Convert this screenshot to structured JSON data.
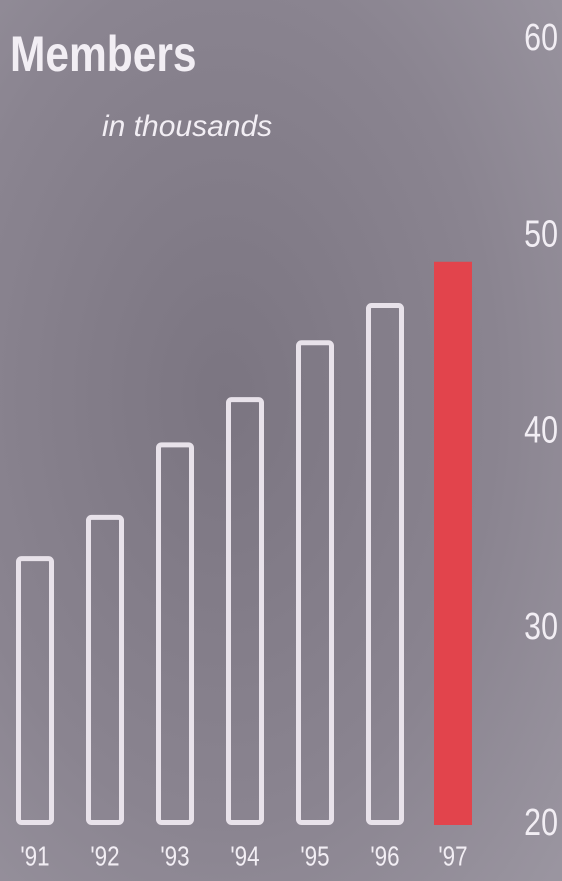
{
  "chart_data": {
    "type": "bar",
    "title": "Members",
    "subtitle": "in thousands",
    "categories": [
      "'91",
      "'92",
      "'93",
      "'94",
      "'95",
      "'96",
      "'97"
    ],
    "values": [
      33.7,
      35.8,
      39.5,
      41.8,
      44.7,
      46.6,
      48.7
    ],
    "bar_colors": [
      "#e8e2ea",
      "#e8e2ea",
      "#e8e2ea",
      "#e8e2ea",
      "#e8e2ea",
      "#e8e2ea",
      "#e2444c"
    ],
    "filled": [
      false,
      false,
      false,
      false,
      false,
      false,
      true
    ],
    "ylim": [
      20,
      60
    ],
    "yticks": [
      20,
      30,
      40,
      50,
      60
    ],
    "grid": false
  }
}
